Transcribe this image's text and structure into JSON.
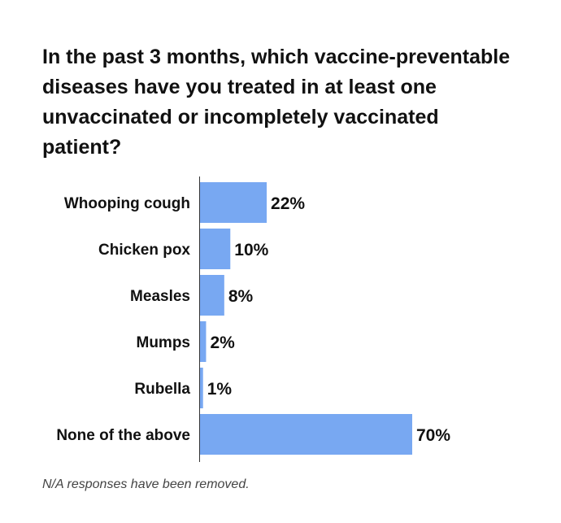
{
  "chart_data": {
    "type": "bar",
    "orientation": "horizontal",
    "title": "In the past 3 months, which vaccine-preventable diseases have you treated in at least one unvaccinated or incompletely vaccinated patient?",
    "categories": [
      "Whooping cough",
      "Chicken pox",
      "Measles",
      "Mumps",
      "Rubella",
      "None of the above"
    ],
    "values": [
      22,
      10,
      8,
      2,
      1,
      70
    ],
    "value_labels": [
      "22%",
      "10%",
      "8%",
      "2%",
      "1%",
      "70%"
    ],
    "unit": "%",
    "xlim": [
      0,
      70
    ],
    "grid": false,
    "legend": "none",
    "bar_color": "#78a8f2",
    "note": "N/A responses have been removed."
  }
}
